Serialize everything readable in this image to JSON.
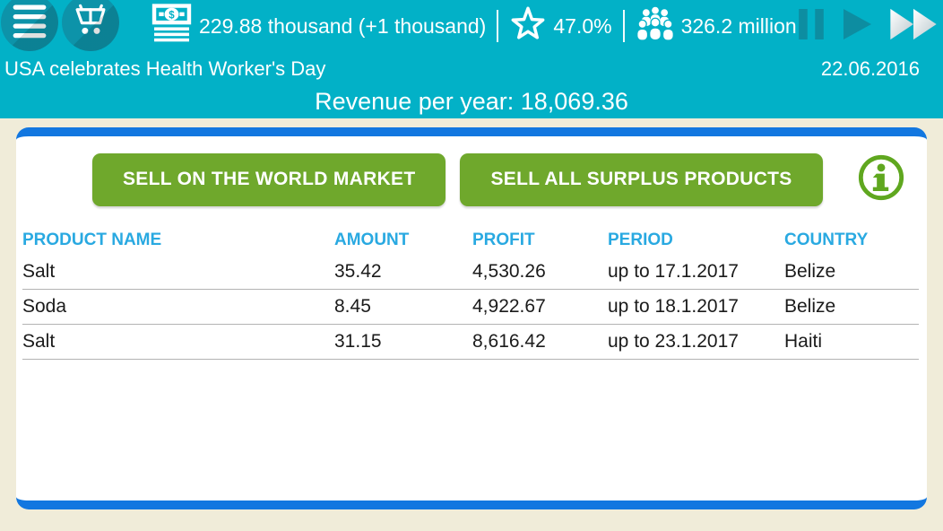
{
  "colors": {
    "header_teal": "#02b1c7",
    "circle_button_teal": "#0d93a9",
    "time_control_teal": "#0d8da1",
    "panel_strip_blue": "#1277e0",
    "page_beige": "#f0ecd9",
    "action_green": "#6fa82c",
    "table_header_blue": "#29a9e1"
  },
  "topbar": {
    "money": "229.88 thousand (+1 thousand)",
    "rating": "47.0%",
    "population": "326.2 million",
    "icons": {
      "menu": "menu-icon",
      "cart": "cart-icon",
      "money": "money-icon",
      "rating": "rating-star-icon",
      "population": "population-icon",
      "pause": "pause-icon",
      "play": "play-icon",
      "fast_forward": "fast-forward-icon"
    }
  },
  "event": {
    "news": "USA celebrates Health Worker's Day",
    "date": "22.06.2016"
  },
  "revenue_line": "Revenue per year: 18,069.36",
  "actions": {
    "sell_world_market": "SELL ON THE WORLD MARKET",
    "sell_all_surplus": "SELL ALL SURPLUS PRODUCTS",
    "info": "info-icon"
  },
  "table": {
    "headers": [
      "PRODUCT NAME",
      "AMOUNT",
      "PROFIT",
      "PERIOD",
      "COUNTRY"
    ],
    "rows": [
      [
        "Salt",
        "35.42",
        "4,530.26",
        "up to 17.1.2017",
        "Belize"
      ],
      [
        "Soda",
        "8.45",
        "4,922.67",
        "up to 18.1.2017",
        "Belize"
      ],
      [
        "Salt",
        "31.15",
        "8,616.42",
        "up to 23.1.2017",
        "Haiti"
      ]
    ]
  }
}
